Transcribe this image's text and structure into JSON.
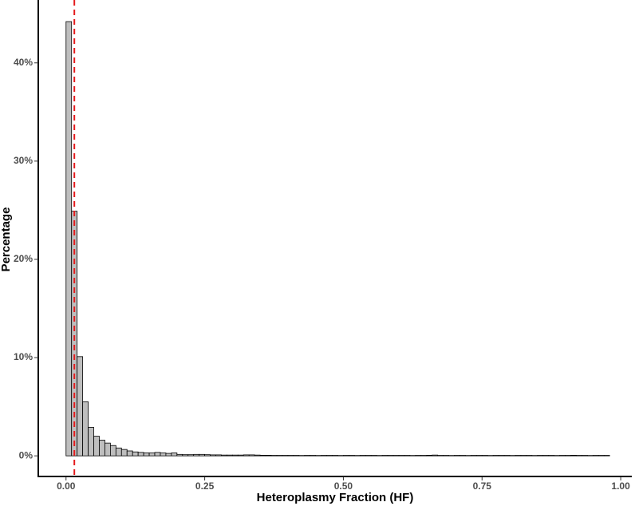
{
  "chart_data": {
    "type": "histogram",
    "x_label": "Heteroplasmy Fraction (HF)",
    "y_label": "Percentage",
    "bins": [
      0,
      0.01,
      0.02,
      0.03,
      0.04,
      0.05,
      0.06,
      0.07,
      0.08,
      0.09,
      0.1,
      0.11,
      0.12,
      0.13,
      0.14,
      0.15,
      0.16,
      0.17,
      0.18,
      0.19,
      0.2,
      0.21,
      0.22,
      0.23,
      0.24,
      0.25,
      0.26,
      0.27,
      0.28,
      0.29,
      0.3,
      0.31,
      0.32,
      0.33,
      0.34,
      0.35,
      0.36,
      0.37,
      0.38,
      0.39,
      0.4,
      0.41,
      0.42,
      0.43,
      0.44,
      0.45,
      0.46,
      0.47,
      0.48,
      0.49,
      0.5,
      0.51,
      0.52,
      0.53,
      0.54,
      0.55,
      0.56,
      0.57,
      0.58,
      0.59,
      0.6,
      0.61,
      0.62,
      0.63,
      0.64,
      0.65,
      0.66,
      0.67,
      0.68,
      0.69,
      0.7,
      0.71,
      0.72,
      0.73,
      0.74,
      0.75,
      0.76,
      0.77,
      0.78,
      0.79,
      0.8,
      0.81,
      0.82,
      0.83,
      0.84,
      0.85,
      0.86,
      0.87,
      0.88,
      0.89,
      0.9,
      0.91,
      0.92,
      0.93,
      0.94,
      0.95,
      0.96,
      0.97,
      0.98
    ],
    "values": [
      44.2,
      24.9,
      10.1,
      5.5,
      2.9,
      2.0,
      1.6,
      1.3,
      1.05,
      0.8,
      0.65,
      0.5,
      0.4,
      0.35,
      0.3,
      0.3,
      0.35,
      0.3,
      0.25,
      0.3,
      0.15,
      0.12,
      0.12,
      0.15,
      0.15,
      0.12,
      0.1,
      0.1,
      0.08,
      0.08,
      0.08,
      0.08,
      0.1,
      0.1,
      0.08,
      0.06,
      0.06,
      0.05,
      0.05,
      0.05,
      0.05,
      0.05,
      0.04,
      0.05,
      0.05,
      0.04,
      0.05,
      0.05,
      0.05,
      0.04,
      0.05,
      0.05,
      0.04,
      0.05,
      0.05,
      0.05,
      0.04,
      0.05,
      0.05,
      0.05,
      0.05,
      0.05,
      0.04,
      0.05,
      0.05,
      0.06,
      0.08,
      0.05,
      0.05,
      0.04,
      0.05,
      0.05,
      0.04,
      0.05,
      0.05,
      0.05,
      0.04,
      0.05,
      0.05,
      0.05,
      0.04,
      0.05,
      0.05,
      0.05,
      0.04,
      0.05,
      0.05,
      0.05,
      0.04,
      0.05,
      0.05,
      0.06,
      0.05,
      0.05,
      0.04,
      0.05,
      0.05,
      0.05
    ],
    "color": "#bebebe",
    "edge_color": "#000000",
    "vline": 0.015,
    "vline_color": "#e41a1c",
    "xlim": [
      -0.05,
      1.02
    ],
    "ylim": [
      -2.1,
      46.4
    ],
    "xticks": [
      {
        "value": 0,
        "label": "0.00"
      },
      0.25,
      {
        "value": 0.5,
        "label": "0.50"
      },
      0.75,
      {
        "value": 1,
        "label": "1.00"
      }
    ],
    "yticks": [
      {
        "value": 0,
        "label": "0%"
      },
      {
        "value": 10,
        "label": "10%"
      },
      {
        "value": 20,
        "label": "20%"
      },
      {
        "value": 30,
        "label": "30%"
      },
      {
        "value": 40,
        "label": "40%"
      }
    ],
    "grid": false
  }
}
